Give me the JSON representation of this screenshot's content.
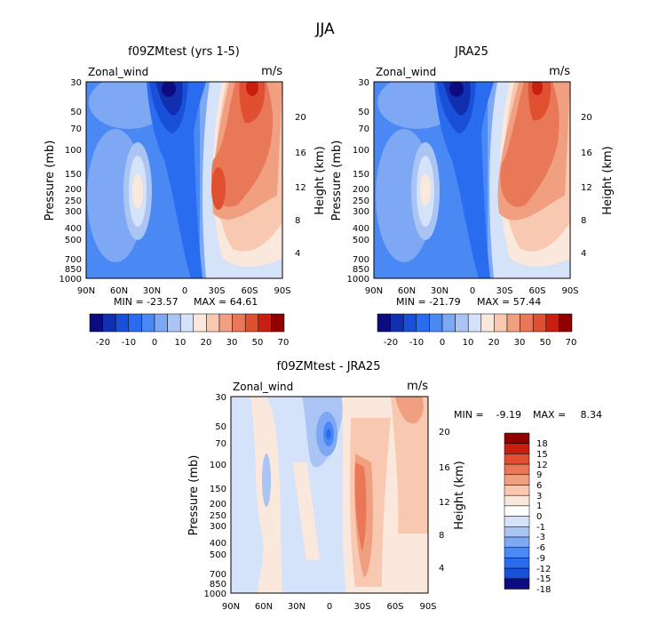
{
  "page": {
    "title": "JJA"
  },
  "colors": {
    "full_scale": [
      "#0c0c80",
      "#1030b0",
      "#1a50d8",
      "#2a6cf0",
      "#4a88f4",
      "#7ea8f4",
      "#aac4f4",
      "#d4e2fa",
      "#fbe8dc",
      "#f8c8b0",
      "#f0a080",
      "#e87858",
      "#e05030",
      "#c82010",
      "#900000"
    ],
    "diff_scale": [
      "#0c0c80",
      "#1030b0",
      "#1a50d8",
      "#2a6cf0",
      "#4a88f4",
      "#7ea8f4",
      "#aac4f4",
      "#d4e2fa",
      "#fbe8dc",
      "#f8c8b0",
      "#f0a080",
      "#e87858",
      "#e05030",
      "#c82010",
      "#900000"
    ]
  },
  "chart_data": [
    {
      "type": "heatmap",
      "id": "model",
      "title": "f09ZMtest (yrs 1-5)",
      "variable_label": "Zonal_wind",
      "units": "m/s",
      "ylabel": "Pressure (mb)",
      "y2label": "Height (km)",
      "x_ticks": [
        "90N",
        "60N",
        "30N",
        "0",
        "30S",
        "60S",
        "90S"
      ],
      "p_ticks": [
        "30",
        "50",
        "70",
        "100",
        "150",
        "200",
        "250",
        "300",
        "400",
        "500",
        "700",
        "850",
        "1000"
      ],
      "p_values": [
        30,
        50,
        70,
        100,
        150,
        200,
        250,
        300,
        400,
        500,
        700,
        850,
        1000
      ],
      "height_ticks": [
        "20",
        "16",
        "12",
        "8",
        "4"
      ],
      "height_values": [
        20,
        16,
        12,
        8,
        4
      ],
      "stats": {
        "min_label": "MIN = -23.57",
        "max_label": "MAX = 64.61"
      },
      "levels": [
        "-20",
        "-10",
        "0",
        "10",
        "20",
        "30",
        "50",
        "70"
      ],
      "features": [
        {
          "lat": 15,
          "p": 35,
          "value": -22
        },
        {
          "lat": 40,
          "p": 200,
          "value": 18
        },
        {
          "lat": -45,
          "p": 40,
          "value": 60
        },
        {
          "lat": -35,
          "p": 200,
          "value": 42
        },
        {
          "lat": -60,
          "p": 200,
          "value": 35
        }
      ]
    },
    {
      "type": "heatmap",
      "id": "obs",
      "title": "JRA25",
      "variable_label": "Zonal_wind",
      "units": "m/s",
      "ylabel": "Pressure (mb)",
      "y2label": "Height (km)",
      "x_ticks": [
        "90N",
        "60N",
        "30N",
        "0",
        "30S",
        "60S",
        "90S"
      ],
      "p_ticks": [
        "30",
        "50",
        "70",
        "100",
        "150",
        "200",
        "250",
        "300",
        "400",
        "500",
        "700",
        "850",
        "1000"
      ],
      "p_values": [
        30,
        50,
        70,
        100,
        150,
        200,
        250,
        300,
        400,
        500,
        700,
        850,
        1000
      ],
      "height_ticks": [
        "20",
        "16",
        "12",
        "8",
        "4"
      ],
      "height_values": [
        20,
        16,
        12,
        8,
        4
      ],
      "stats": {
        "min_label": "MIN = -21.79",
        "max_label": "MAX = 57.44"
      },
      "levels": [
        "-20",
        "-10",
        "0",
        "10",
        "20",
        "30",
        "50",
        "70"
      ],
      "features": [
        {
          "lat": 15,
          "p": 35,
          "value": -20
        },
        {
          "lat": 40,
          "p": 200,
          "value": 16
        },
        {
          "lat": -45,
          "p": 40,
          "value": 55
        },
        {
          "lat": -35,
          "p": 200,
          "value": 38
        },
        {
          "lat": -60,
          "p": 200,
          "value": 30
        }
      ]
    },
    {
      "type": "heatmap",
      "id": "diff",
      "title": "f09ZMtest - JRA25",
      "variable_label": "Zonal_wind",
      "units": "m/s",
      "ylabel": "Pressure (mb)",
      "y2label": "Height (km)",
      "x_ticks": [
        "90N",
        "60N",
        "30N",
        "0",
        "30S",
        "60S",
        "90S"
      ],
      "p_ticks": [
        "30",
        "50",
        "70",
        "100",
        "150",
        "200",
        "250",
        "300",
        "400",
        "500",
        "700",
        "850",
        "1000"
      ],
      "p_values": [
        30,
        50,
        70,
        100,
        150,
        200,
        250,
        300,
        400,
        500,
        700,
        850,
        1000
      ],
      "height_ticks": [
        "20",
        "16",
        "12",
        "8",
        "4"
      ],
      "height_values": [
        20,
        16,
        12,
        8,
        4
      ],
      "stats": {
        "min_label": "MIN =",
        "min_value": "-9.19",
        "max_label": "MAX =",
        "max_value": "8.34"
      },
      "levels": [
        "18",
        "15",
        "12",
        "9",
        "6",
        "3",
        "1",
        "0",
        "-1",
        "-3",
        "-6",
        "-9",
        "-12",
        "-15",
        "-18"
      ],
      "features": [
        {
          "lat": 0,
          "p": 55,
          "value": -9
        },
        {
          "lat": -30,
          "p": 200,
          "value": 6
        },
        {
          "lat": -60,
          "p": 35,
          "value": 5
        }
      ]
    }
  ]
}
